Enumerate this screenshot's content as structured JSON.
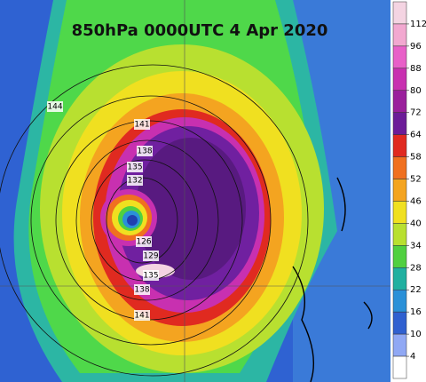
{
  "title": "850hPa 0000UTC 4 Apr 2020",
  "colorbar": {
    "labels": [
      112,
      96,
      88,
      80,
      72,
      64,
      58,
      52,
      46,
      40,
      34,
      28,
      22,
      16,
      10,
      4
    ],
    "colors": [
      "#f4d4e2",
      "#f2a8d0",
      "#e860c8",
      "#c830b0",
      "#9a209c",
      "#6c1c98",
      "#e02a20",
      "#f07020",
      "#f4a420",
      "#f0e020",
      "#b8e030",
      "#50d040",
      "#20b0a0",
      "#2a90d8",
      "#3060d0",
      "#90a8f4",
      "#ffffff"
    ]
  },
  "contour_labels": [
    144,
    141,
    138,
    135,
    132,
    126,
    129,
    135,
    138,
    141
  ]
}
